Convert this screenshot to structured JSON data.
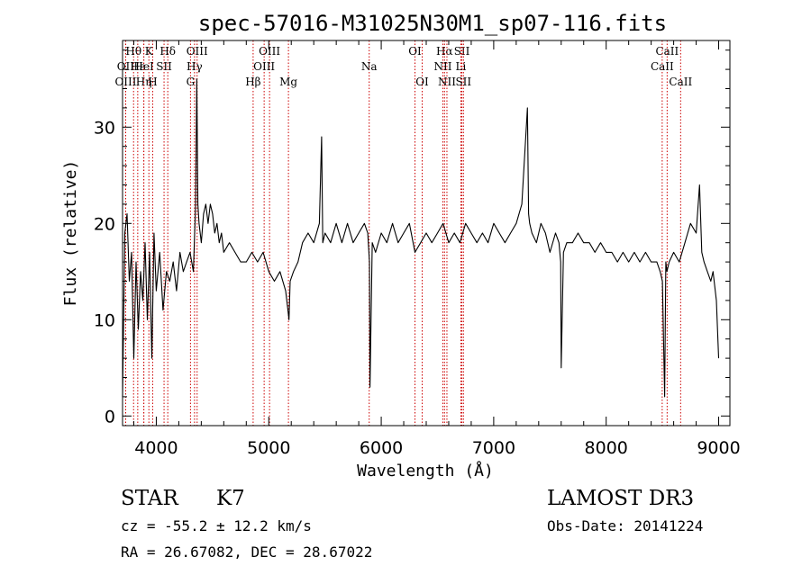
{
  "chart_data": {
    "type": "line",
    "title": "spec-57016-M31025N30M1_sp07-116.fits",
    "xlabel": "Wavelength (Å)",
    "ylabel": "Flux (relative)",
    "xlim": [
      3700,
      9100
    ],
    "ylim": [
      -1,
      39
    ],
    "xticks": [
      4000,
      5000,
      6000,
      7000,
      8000,
      9000
    ],
    "yticks": [
      0,
      10,
      20,
      30
    ],
    "series": [
      {
        "name": "spectrum",
        "x": [
          3700,
          3720,
          3740,
          3760,
          3780,
          3800,
          3820,
          3840,
          3860,
          3880,
          3900,
          3920,
          3940,
          3960,
          3980,
          4000,
          4030,
          4060,
          4090,
          4120,
          4150,
          4180,
          4210,
          4240,
          4270,
          4300,
          4330,
          4350,
          4360,
          4370,
          4380,
          4400,
          4420,
          4440,
          4460,
          4480,
          4500,
          4520,
          4540,
          4560,
          4580,
          4600,
          4650,
          4700,
          4750,
          4800,
          4850,
          4900,
          4950,
          5000,
          5050,
          5100,
          5150,
          5170,
          5180,
          5190,
          5220,
          5260,
          5300,
          5350,
          5400,
          5450,
          5470,
          5480,
          5500,
          5550,
          5600,
          5650,
          5700,
          5750,
          5800,
          5850,
          5880,
          5895,
          5900,
          5920,
          5950,
          6000,
          6050,
          6100,
          6150,
          6200,
          6250,
          6300,
          6350,
          6400,
          6450,
          6500,
          6550,
          6600,
          6650,
          6700,
          6750,
          6800,
          6850,
          6900,
          6950,
          7000,
          7050,
          7100,
          7150,
          7200,
          7250,
          7300,
          7310,
          7320,
          7340,
          7380,
          7420,
          7460,
          7500,
          7550,
          7580,
          7595,
          7600,
          7620,
          7650,
          7700,
          7750,
          7800,
          7850,
          7900,
          7950,
          8000,
          8050,
          8100,
          8150,
          8200,
          8250,
          8300,
          8350,
          8400,
          8450,
          8480,
          8500,
          8520,
          8530,
          8540,
          8560,
          8600,
          8650,
          8700,
          8750,
          8800,
          8830,
          8850,
          8870,
          8900,
          8930,
          8950,
          8980,
          9000
        ],
        "y": [
          2,
          19,
          21,
          14,
          17,
          6,
          16,
          9,
          15,
          12,
          18,
          10,
          17,
          6,
          19,
          13,
          17,
          11,
          15,
          14,
          16,
          13,
          17,
          15,
          16,
          17,
          15,
          22,
          35,
          22,
          20,
          18,
          21,
          22,
          20,
          22,
          21,
          19,
          20,
          18,
          19,
          17,
          18,
          17,
          16,
          16,
          17,
          16,
          17,
          15,
          14,
          15,
          13,
          11,
          10,
          14,
          15,
          16,
          18,
          19,
          18,
          20,
          29,
          18,
          19,
          18,
          20,
          18,
          20,
          18,
          19,
          20,
          19,
          16,
          3,
          18,
          17,
          19,
          18,
          20,
          18,
          19,
          20,
          17,
          18,
          19,
          18,
          19,
          20,
          18,
          19,
          18,
          20,
          19,
          18,
          19,
          18,
          20,
          19,
          18,
          19,
          20,
          22,
          32,
          21,
          20,
          19,
          18,
          20,
          19,
          17,
          19,
          18,
          16,
          5,
          17,
          18,
          18,
          19,
          18,
          18,
          17,
          18,
          17,
          17,
          16,
          17,
          16,
          17,
          16,
          17,
          16,
          16,
          15,
          14,
          2,
          16,
          15,
          16,
          17,
          16,
          18,
          20,
          19,
          24,
          17,
          16,
          15,
          14,
          15,
          12,
          6
        ]
      }
    ],
    "lines": [
      {
        "label": "Hθ",
        "x": 3798,
        "row": 1
      },
      {
        "label": "OII",
        "x": 3727,
        "row": 2
      },
      {
        "label": "OIII",
        "x": 3728,
        "row": 3
      },
      {
        "label": "Hε",
        "x": 3835,
        "row": 2
      },
      {
        "label": "Hη",
        "x": 3889,
        "row": 3
      },
      {
        "label": "K",
        "x": 3934,
        "row": 1
      },
      {
        "label": "HeI",
        "x": 3889,
        "row": 2
      },
      {
        "label": "H",
        "x": 3968,
        "row": 3
      },
      {
        "label": "Hδ",
        "x": 4102,
        "row": 1
      },
      {
        "label": "SII",
        "x": 4069,
        "row": 2
      },
      {
        "label": "OIII",
        "x": 4363,
        "row": 1
      },
      {
        "label": "Hγ",
        "x": 4340,
        "row": 2
      },
      {
        "label": "G",
        "x": 4304,
        "row": 3
      },
      {
        "label": "OIII",
        "x": 5007,
        "row": 1
      },
      {
        "label": "OIII",
        "x": 4959,
        "row": 2
      },
      {
        "label": "Hβ",
        "x": 4861,
        "row": 3
      },
      {
        "label": "Mg",
        "x": 5175,
        "row": 3
      },
      {
        "label": "Na",
        "x": 5893,
        "row": 2
      },
      {
        "label": "OI",
        "x": 6300,
        "row": 1
      },
      {
        "label": "OI",
        "x": 6364,
        "row": 3
      },
      {
        "label": "Hα",
        "x": 6563,
        "row": 1
      },
      {
        "label": "NII",
        "x": 6548,
        "row": 2
      },
      {
        "label": "NII",
        "x": 6584,
        "row": 3
      },
      {
        "label": "SII",
        "x": 6717,
        "row": 1
      },
      {
        "label": "Li",
        "x": 6708,
        "row": 2
      },
      {
        "label": "SII",
        "x": 6731,
        "row": 3
      },
      {
        "label": "CaII",
        "x": 8542,
        "row": 1
      },
      {
        "label": "CaII",
        "x": 8498,
        "row": 2
      },
      {
        "label": "CaII",
        "x": 8662,
        "row": 3
      }
    ]
  },
  "info": {
    "object_class": "STAR",
    "subclass": "K7",
    "survey": "LAMOST DR3",
    "cz": "cz = -55.2 ± 12.2 km/s",
    "obs_date": "Obs-Date: 20141224",
    "coords": "RA =  26.67082, DEC =  28.67022"
  },
  "colors": {
    "line_marker": "#cc0000",
    "spectrum": "#000000"
  }
}
